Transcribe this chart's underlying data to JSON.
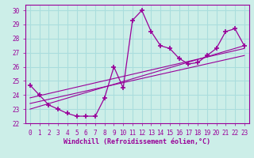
{
  "xlabel": "Windchill (Refroidissement éolien,°C)",
  "bg_color": "#cceee8",
  "grid_color": "#aadddd",
  "line_color": "#990099",
  "xlim": [
    -0.5,
    23.5
  ],
  "ylim": [
    22,
    30.4
  ],
  "xticks": [
    0,
    1,
    2,
    3,
    4,
    5,
    6,
    7,
    8,
    9,
    10,
    11,
    12,
    13,
    14,
    15,
    16,
    17,
    18,
    19,
    20,
    21,
    22,
    23
  ],
  "yticks": [
    22,
    23,
    24,
    25,
    26,
    27,
    28,
    29,
    30
  ],
  "hours": [
    0,
    1,
    2,
    3,
    4,
    5,
    6,
    7,
    8,
    9,
    10,
    11,
    12,
    13,
    14,
    15,
    16,
    17,
    18,
    19,
    20,
    21,
    22,
    23
  ],
  "temp": [
    24.7,
    24.0,
    23.3,
    23.0,
    22.7,
    22.5,
    22.5,
    22.5,
    23.8,
    26.0,
    24.5,
    29.3,
    30.0,
    28.5,
    27.5,
    27.3,
    26.6,
    26.2,
    26.3,
    26.8,
    27.3,
    28.5,
    28.7,
    27.5
  ],
  "reg_lines": [
    {
      "x": [
        0,
        23
      ],
      "y": [
        23.8,
        27.3
      ]
    },
    {
      "x": [
        0,
        23
      ],
      "y": [
        23.4,
        26.8
      ]
    },
    {
      "x": [
        0,
        23
      ],
      "y": [
        23.0,
        27.5
      ]
    }
  ]
}
